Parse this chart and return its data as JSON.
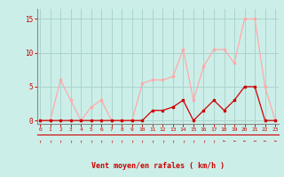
{
  "x": [
    0,
    1,
    2,
    3,
    4,
    5,
    6,
    7,
    8,
    9,
    10,
    11,
    12,
    13,
    14,
    15,
    16,
    17,
    18,
    19,
    20,
    21,
    22,
    23
  ],
  "rafales": [
    0,
    0,
    6,
    3,
    0,
    2,
    3,
    0,
    0,
    0,
    5.5,
    6,
    6,
    6.5,
    10.5,
    3,
    8,
    10.5,
    10.5,
    8.5,
    15,
    15,
    5,
    0
  ],
  "vent_moyen": [
    0,
    0,
    0,
    0,
    0,
    0,
    0,
    0,
    0,
    0,
    0,
    1.5,
    1.5,
    2,
    3,
    0,
    1.5,
    3,
    1.5,
    3,
    5,
    5,
    0,
    0
  ],
  "bg_color": "#cceee8",
  "grid_color": "#aad4ce",
  "line_color_rafales": "#ffaaaa",
  "line_color_vent": "#cc0000",
  "marker_color_rafales": "#ffaaaa",
  "marker_color_vent": "#cc0000",
  "xlabel": "Vent moyen/en rafales ( km/h )",
  "xlabel_color": "#cc0000",
  "tick_color": "#cc0000",
  "spine_color": "#888888",
  "ylim": [
    -0.5,
    16.5
  ],
  "xlim": [
    -0.3,
    23.3
  ],
  "yticks": [
    0,
    5,
    10,
    15
  ],
  "xticks": [
    0,
    1,
    2,
    3,
    4,
    5,
    6,
    7,
    8,
    9,
    10,
    11,
    12,
    13,
    14,
    15,
    16,
    17,
    18,
    19,
    20,
    21,
    22,
    23
  ],
  "wind_dirs": [
    "↑",
    "↑",
    "↑",
    "↑",
    "↑",
    "↑",
    "↑",
    "↑",
    "↑",
    "↑",
    "↑",
    "↑",
    "↑",
    "↑",
    "↑",
    "↑",
    "↑",
    "↑",
    "←",
    "←",
    "←",
    "←",
    "←",
    "←"
  ]
}
